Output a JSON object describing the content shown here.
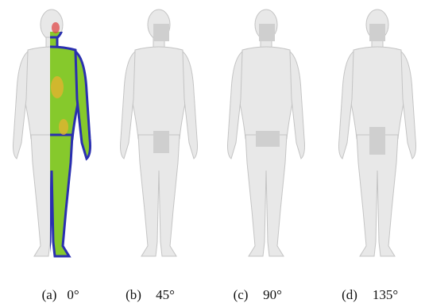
{
  "captions": [
    {
      "label": "(a)",
      "angle": "0°"
    },
    {
      "label": "(b)",
      "angle": "45°"
    },
    {
      "label": "(c)",
      "angle": "90°"
    },
    {
      "label": "(d)",
      "angle": "135°"
    }
  ]
}
